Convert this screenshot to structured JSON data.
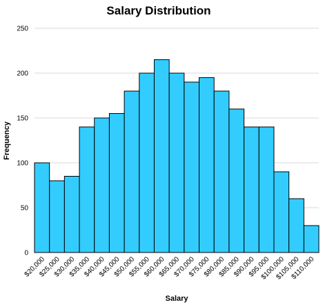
{
  "chart_data": {
    "type": "bar",
    "title": "Salary Distribution",
    "xlabel": "Salary",
    "ylabel": "Frequency",
    "categories": [
      "$20,000",
      "$25,000",
      "$30,000",
      "$35,000",
      "$40,000",
      "$45,000",
      "$50,000",
      "$55,000",
      "$60,000",
      "$65,000",
      "$70,000",
      "$75,000",
      "$80,000",
      "$85,000",
      "$90,000",
      "$95,000",
      "$100,000",
      "$105,000",
      "$110,000"
    ],
    "values": [
      100,
      80,
      85,
      140,
      150,
      155,
      180,
      200,
      215,
      200,
      190,
      195,
      180,
      160,
      140,
      140,
      90,
      60,
      30
    ],
    "ylim": [
      0,
      250
    ],
    "yticks": [
      "0",
      "50",
      "100",
      "150",
      "200",
      "250"
    ],
    "grid": true,
    "legend": "none",
    "bar_color": "#33ccff",
    "edge_color": "#000000"
  }
}
